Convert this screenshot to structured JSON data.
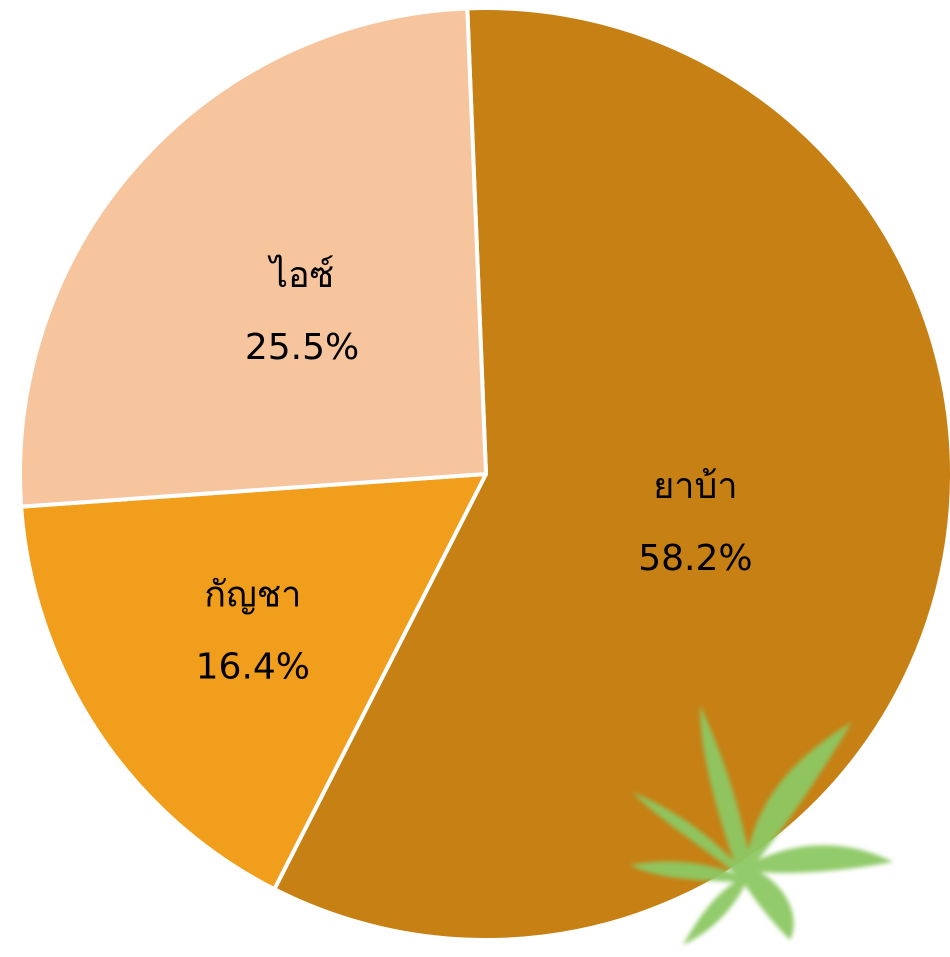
{
  "chart_data": {
    "type": "pie",
    "slices": [
      {
        "label": "ยาบ้า",
        "value": 58.2,
        "display": "58.2%",
        "color": "#C68014"
      },
      {
        "label": "กัญชา",
        "value": 16.4,
        "display": "16.4%",
        "color": "#F09E1C"
      },
      {
        "label": "ไอซ์",
        "value": 25.5,
        "display": "25.5%",
        "color": "#F6C59E"
      }
    ],
    "start_angle_deg": -92.3,
    "direction": "clockwise",
    "slice_border_color": "#FFFFFF"
  },
  "decoration": {
    "icon": "cannabis-leaf-icon",
    "color": "#8CC862"
  }
}
